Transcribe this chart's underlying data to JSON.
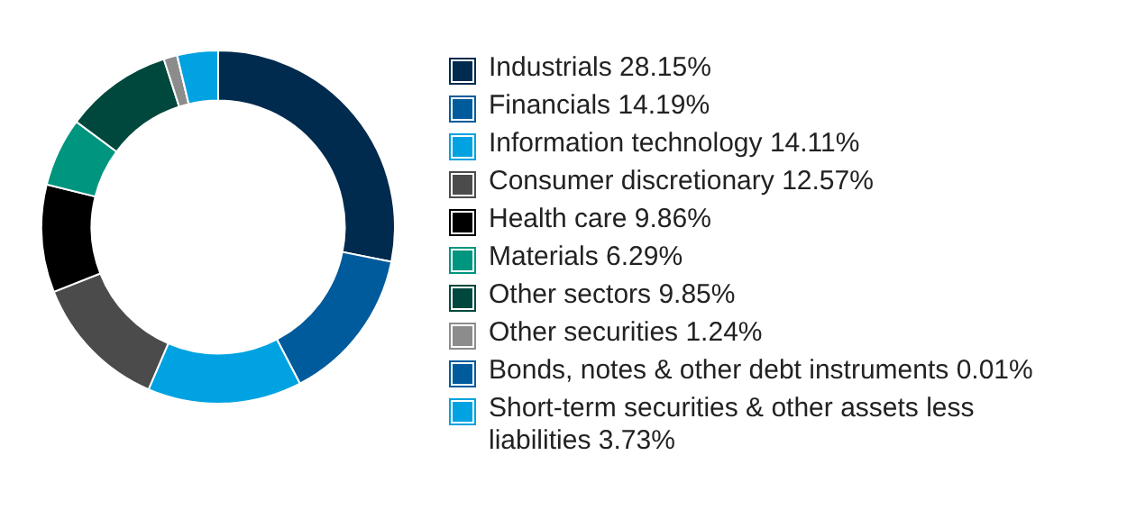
{
  "chart_data": {
    "type": "donut",
    "categories": [
      "Industrials",
      "Financials",
      "Information technology",
      "Consumer discretionary",
      "Health care",
      "Materials",
      "Other sectors",
      "Other securities",
      "Bonds, notes & other debt instruments",
      "Short-term securities & other assets less liabilities"
    ],
    "values": [
      28.15,
      14.19,
      14.11,
      12.57,
      9.86,
      6.29,
      9.85,
      1.24,
      0.01,
      3.73
    ],
    "value_labels": [
      "28.15%",
      "14.19%",
      "14.11%",
      "12.57%",
      "9.86%",
      "6.29%",
      "9.85%",
      "1.24%",
      "0.01%",
      "3.73%"
    ],
    "colors": [
      "#002a4e",
      "#005b9c",
      "#00a2e1",
      "#4b4b4b",
      "#000000",
      "#00957e",
      "#00483d",
      "#8c8c8c",
      "#005b9c",
      "#00a2e1"
    ],
    "legend": "right"
  }
}
